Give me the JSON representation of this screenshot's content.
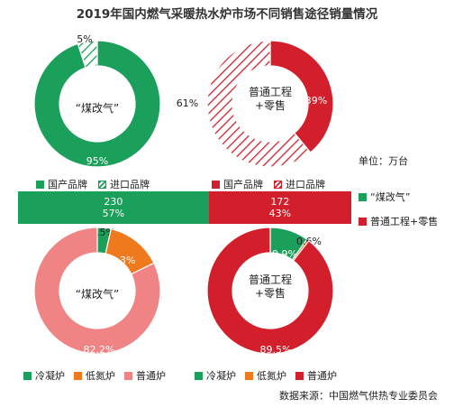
{
  "title": "2019年国内燃气采暖热水炉市场不同销售途径销量情况",
  "unit": "单位：万台",
  "source": "数据来源：中国燃气供热专业委员会",
  "colors": {
    "green": "#1aa05a",
    "red": "#d21f2b",
    "orange": "#ef7a1e",
    "pink": "#f08384"
  },
  "chart_data": [
    {
      "type": "pie",
      "center_label": "“煤改气”",
      "slices": [
        {
          "name": "国产品牌",
          "value": 95,
          "label": "95%",
          "style": "solid",
          "color": "#1aa05a"
        },
        {
          "name": "进口品牌",
          "value": 5,
          "label": "5%",
          "style": "hatched",
          "color": "#1aa05a"
        }
      ]
    },
    {
      "type": "pie",
      "center_label": [
        "普通工程",
        "+零售"
      ],
      "slices": [
        {
          "name": "国产品牌",
          "value": 39,
          "label": "39%",
          "style": "solid",
          "color": "#d21f2b"
        },
        {
          "name": "进口品牌",
          "value": 61,
          "label": "61%",
          "style": "hatched",
          "color": "#d21f2b"
        }
      ]
    },
    {
      "type": "bar",
      "stacked": true,
      "orientation": "horizontal",
      "series": [
        {
          "name": "“煤改气”",
          "value": 230,
          "percent": "57%",
          "color": "#1aa05a"
        },
        {
          "name": "普通工程+零售",
          "value": 172,
          "percent": "43%",
          "color": "#d21f2b"
        }
      ]
    },
    {
      "type": "pie",
      "center_label": "“煤改气”",
      "slices": [
        {
          "name": "冷凝炉",
          "value": 3.5,
          "label": "3.5%",
          "color": "#1aa05a"
        },
        {
          "name": "低氮炉",
          "value": 14.3,
          "label": "14.3%",
          "color": "#ef7a1e"
        },
        {
          "name": "普通炉",
          "value": 82.2,
          "label": "82.2%",
          "color": "#f08384"
        }
      ]
    },
    {
      "type": "pie",
      "center_label": [
        "普通工程",
        "+零售"
      ],
      "slices": [
        {
          "name": "冷凝炉",
          "value": 9.9,
          "label": "9.9%",
          "color": "#1aa05a"
        },
        {
          "name": "低氮炉",
          "value": 0.6,
          "label": "0.6%",
          "color": "#ef7a1e"
        },
        {
          "name": "普通炉",
          "value": 89.5,
          "label": "89.5%",
          "color": "#d21f2b"
        }
      ]
    }
  ],
  "legends": {
    "top_left": [
      "国产品牌",
      "进口品牌"
    ],
    "top_right": [
      "国产品牌",
      "进口品牌"
    ],
    "bar": [
      "“煤改气”",
      "普通工程+零售"
    ],
    "bottom_left": [
      "冷凝炉",
      "低氮炉",
      "普通炉"
    ],
    "bottom_right": [
      "冷凝炉",
      "低氮炉",
      "普通炉"
    ]
  }
}
